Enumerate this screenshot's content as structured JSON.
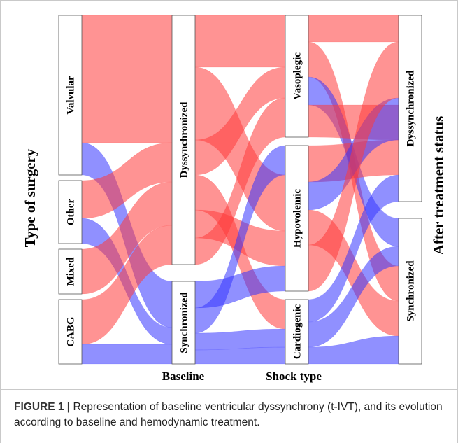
{
  "figure": {
    "y_axis_left_label": "Type of surgery",
    "y_axis_right_label": "After treatment status",
    "axes": [
      {
        "label": "",
        "strata": [
          {
            "id": "valvular",
            "name": "Valvular"
          },
          {
            "id": "other",
            "name": "Other"
          },
          {
            "id": "mixed",
            "name": "Mixed"
          },
          {
            "id": "cabg",
            "name": "CABG"
          }
        ]
      },
      {
        "label": "Baseline",
        "strata": [
          {
            "id": "dyssync",
            "name": "Dyssynchronized"
          },
          {
            "id": "sync",
            "name": "Synchronized"
          }
        ]
      },
      {
        "label": "Shock type",
        "strata": [
          {
            "id": "vaso",
            "name": "Vasoplegic"
          },
          {
            "id": "hypo",
            "name": "Hypovolemic"
          },
          {
            "id": "cardio",
            "name": "Cardiogenic"
          }
        ]
      },
      {
        "label": "",
        "strata": [
          {
            "id": "after_dyssync",
            "name": "Dyssynchronized"
          },
          {
            "id": "after_sync",
            "name": "Synchronized"
          }
        ]
      }
    ],
    "colors": {
      "dyssynchronized": "#ff3b3b",
      "synchronized": "#3434ff",
      "stratum_box": "#ffffff",
      "stratum_border": "#555555"
    }
  },
  "caption": {
    "label": "FIGURE 1 |",
    "text": " Representation of baseline ventricular dyssynchrony (t-IVT), and its evolution according to baseline and hemodynamic treatment."
  }
}
